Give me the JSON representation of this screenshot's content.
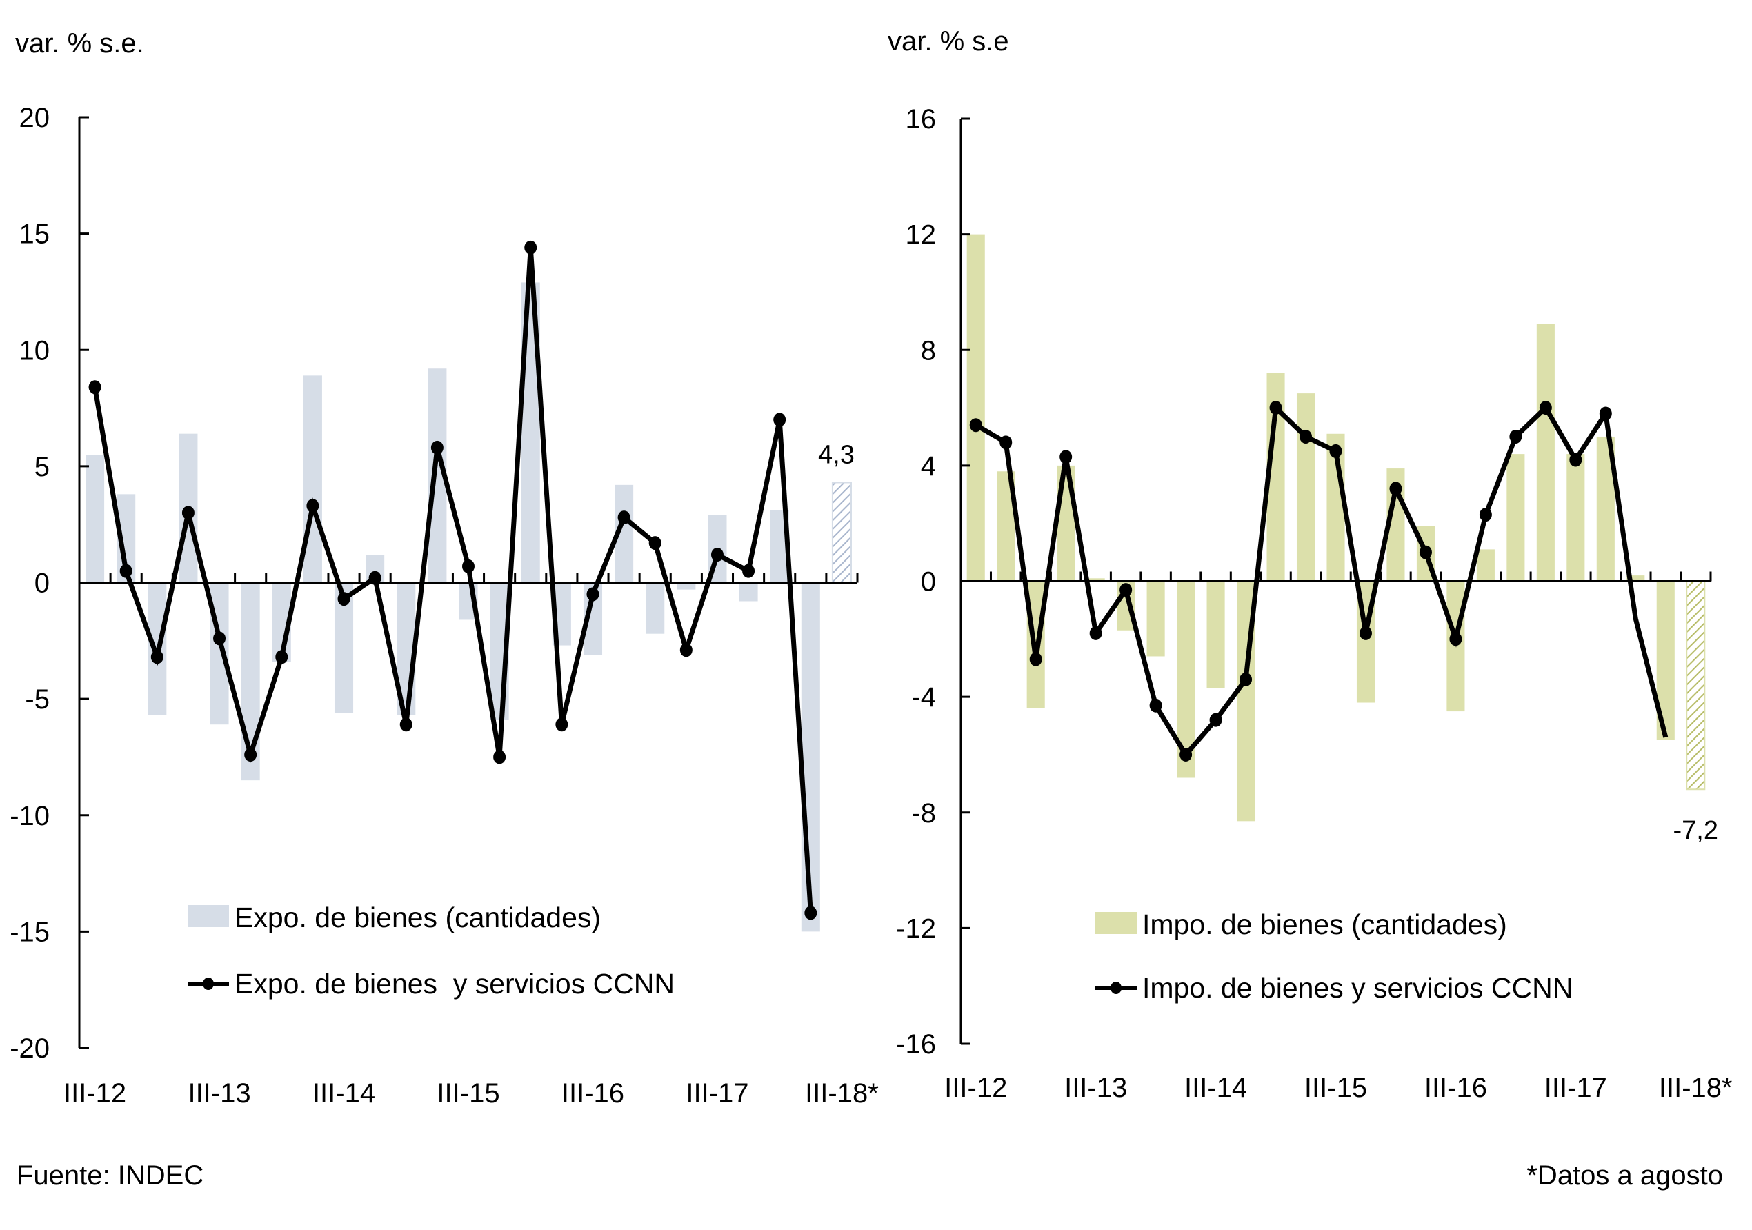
{
  "footer": {
    "source": "Fuente: INDEC",
    "note": "*Datos a agosto"
  },
  "colors": {
    "expo_bar": "#d6dde7",
    "impo_bar": "#dce0ab",
    "expo_hatch": "#a9b6cd",
    "impo_hatch": "#b8bd6a",
    "line": "#000000"
  },
  "chart_data": [
    {
      "type": "bar",
      "id": "exports",
      "ylabel": "var. % s.e.",
      "ylim": [
        -20,
        20
      ],
      "yticks": [
        20,
        15,
        10,
        5,
        0,
        -5,
        -10,
        -15,
        -20
      ],
      "ytick_labels": [
        "20",
        "15",
        "10",
        "5",
        "0",
        "-5",
        "-10",
        "-15",
        "-20"
      ],
      "xtick_labels": [
        "III-12",
        "III-13",
        "III-14",
        "III-15",
        "III-16",
        "III-17",
        "III-18*"
      ],
      "categories": [
        "III-12",
        "IV-12",
        "I-13",
        "II-13",
        "III-13",
        "IV-13",
        "I-14",
        "II-14",
        "III-14",
        "IV-14",
        "I-15",
        "II-15",
        "III-15",
        "IV-15",
        "I-16",
        "II-16",
        "III-16",
        "IV-16",
        "I-17",
        "II-17",
        "III-17",
        "IV-17",
        "I-18",
        "II-18",
        "III-18*"
      ],
      "series": [
        {
          "name": "Expo. de bienes (cantidades)",
          "kind": "bar",
          "values": [
            5.5,
            3.8,
            -5.7,
            6.4,
            -6.1,
            -8.5,
            -3.4,
            8.9,
            -5.6,
            1.2,
            -5.7,
            9.2,
            -1.6,
            -5.9,
            12.9,
            -2.7,
            -3.1,
            4.2,
            -2.2,
            -0.3,
            2.9,
            -0.8,
            3.1,
            -15.0,
            4.3
          ],
          "hatched_last": true
        },
        {
          "name": "Expo. de bienes  y servicios CCNN",
          "kind": "line",
          "values": [
            8.4,
            0.5,
            -3.2,
            3.0,
            -2.4,
            -7.4,
            -3.2,
            3.3,
            -0.7,
            0.2,
            -6.1,
            5.8,
            0.7,
            -7.5,
            14.4,
            -6.1,
            -0.5,
            2.8,
            1.7,
            -2.9,
            1.2,
            0.5,
            7.0,
            -14.2,
            null
          ]
        }
      ],
      "annotations": [
        {
          "text": "4,3",
          "category": "III-18*",
          "value": 4.3
        }
      ],
      "legend": [
        "Expo. de bienes (cantidades)",
        "Expo. de bienes  y servicios CCNN"
      ],
      "legend_position": "bottom-center",
      "grid": false
    },
    {
      "type": "bar",
      "id": "imports",
      "ylabel": "var. % s.e",
      "ylim": [
        -16,
        16
      ],
      "yticks": [
        16,
        12,
        8,
        4,
        0,
        -4,
        -8,
        -12,
        -16
      ],
      "ytick_labels": [
        "16",
        "12",
        "8",
        "4",
        "0",
        "-4",
        "-8",
        "-12",
        "-16"
      ],
      "xtick_labels": [
        "III-12",
        "III-13",
        "III-14",
        "III-15",
        "III-16",
        "III-17",
        "III-18*"
      ],
      "categories": [
        "III-12",
        "IV-12",
        "I-13",
        "II-13",
        "III-13",
        "IV-13",
        "I-14",
        "II-14",
        "III-14",
        "IV-14",
        "I-15",
        "II-15",
        "III-15",
        "IV-15",
        "I-16",
        "II-16",
        "III-16",
        "IV-16",
        "I-17",
        "II-17",
        "III-17",
        "IV-17",
        "I-18",
        "II-18",
        "III-18*"
      ],
      "series": [
        {
          "name": "Impo. de bienes (cantidades)",
          "kind": "bar",
          "values": [
            12.0,
            3.8,
            -4.4,
            4.0,
            0.1,
            -1.7,
            -2.6,
            -6.8,
            -3.7,
            -8.3,
            7.2,
            6.5,
            5.1,
            -4.2,
            3.9,
            1.9,
            -4.5,
            1.1,
            4.4,
            8.9,
            4.4,
            5.0,
            0.2,
            -5.5,
            -7.2
          ],
          "hatched_last": true
        },
        {
          "name": "Impo. de bienes y servicios CCNN",
          "kind": "line",
          "values": [
            5.4,
            4.8,
            -2.7,
            4.3,
            -1.8,
            -0.3,
            -4.3,
            -6.0,
            -4.8,
            -3.4,
            6.0,
            5.0,
            4.5,
            -1.8,
            3.2,
            1.0,
            -2.0,
            2.3,
            5.0,
            6.0,
            4.2,
            5.8,
            -1.3,
            -5.4,
            null
          ],
          "markers_omitted_for": [
            "I-18",
            "II-18"
          ]
        }
      ],
      "annotations": [
        {
          "text": "-7,2",
          "category": "III-18*",
          "value": -7.2
        }
      ],
      "legend": [
        "Impo. de bienes (cantidades)",
        "Impo. de bienes y servicios CCNN"
      ],
      "legend_position": "bottom-center",
      "grid": false
    }
  ]
}
